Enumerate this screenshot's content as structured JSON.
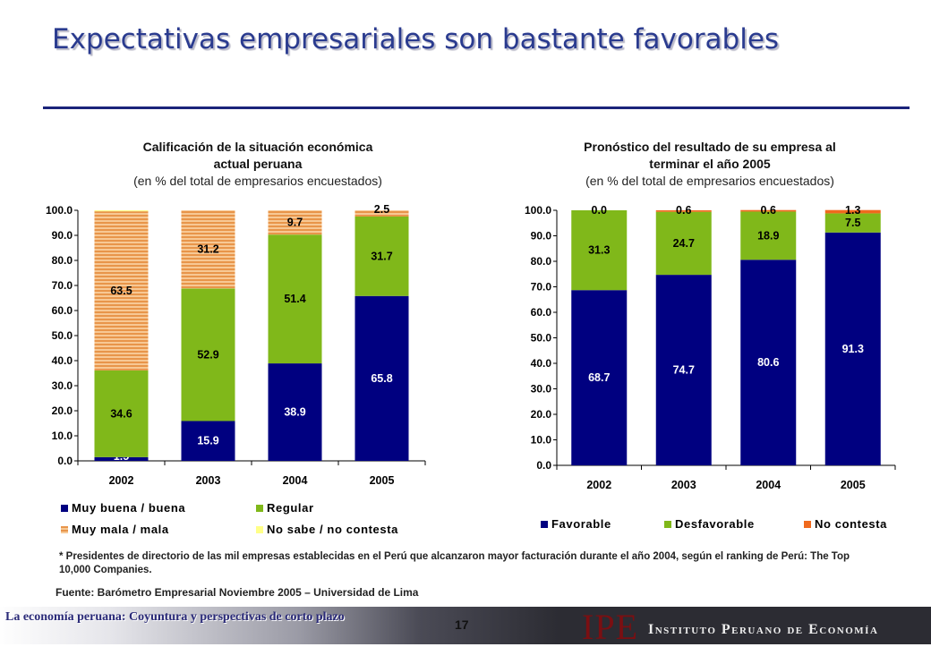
{
  "title": "Expectativas empresariales son bastante favorables",
  "chart_data": [
    {
      "type": "bar",
      "stacked": true,
      "title_line1": "Calificación de la situación económica",
      "title_line2": "actual peruana",
      "subtitle": "(en % del total de empresarios encuestados)",
      "categories": [
        "2002",
        "2003",
        "2004",
        "2005"
      ],
      "ylim": [
        0,
        100
      ],
      "yticks": [
        "0.0",
        "10.0",
        "20.0",
        "30.0",
        "40.0",
        "50.0",
        "60.0",
        "70.0",
        "80.0",
        "90.0",
        "100.0"
      ],
      "series": [
        {
          "name": "Muy buena / buena",
          "color": "#000080",
          "values": [
            1.5,
            15.9,
            38.9,
            65.8
          ],
          "labels": [
            "1.5",
            "15.9",
            "38.9",
            "65.8"
          ],
          "label_color": "#ffffff"
        },
        {
          "name": "Regular",
          "color": "#80b81a",
          "values": [
            34.6,
            52.9,
            51.4,
            31.7
          ],
          "labels": [
            "34.6",
            "52.9",
            "51.4",
            "31.7"
          ],
          "label_color": "#000000"
        },
        {
          "name": "Muy mala / mala",
          "color": "#f0a65a",
          "pattern": "hatch",
          "values": [
            63.5,
            31.2,
            9.7,
            2.5
          ],
          "labels": [
            "63.5",
            "31.2",
            "9.7",
            "2.5"
          ],
          "label_color": "#000000"
        },
        {
          "name": "No sabe / no contesta",
          "color": "#ffff88",
          "values": [
            0.4,
            0.0,
            0.0,
            0.0
          ],
          "labels": [
            "",
            "",
            "",
            ""
          ],
          "label_color": "#000000"
        }
      ],
      "legend": [
        "Muy buena / buena",
        "Regular",
        "Muy mala / mala",
        "No sabe / no contesta"
      ]
    },
    {
      "type": "bar",
      "stacked": true,
      "title_line1": "Pronóstico del resultado de su empresa al",
      "title_line2": "terminar el año 2005",
      "subtitle": "(en % del total de empresarios encuestados)",
      "categories": [
        "2002",
        "2003",
        "2004",
        "2005"
      ],
      "ylim": [
        0,
        100
      ],
      "yticks": [
        "0.0",
        "10.0",
        "20.0",
        "30.0",
        "40.0",
        "50.0",
        "60.0",
        "70.0",
        "80.0",
        "90.0",
        "100.0"
      ],
      "series": [
        {
          "name": "Favorable",
          "color": "#000080",
          "values": [
            68.7,
            74.7,
            80.6,
            91.3
          ],
          "labels": [
            "68.7",
            "74.7",
            "80.6",
            "91.3"
          ],
          "label_color": "#ffffff"
        },
        {
          "name": "Desfavorable",
          "color": "#80b81a",
          "values": [
            31.3,
            24.7,
            18.9,
            7.5
          ],
          "labels": [
            "31.3",
            "24.7",
            "18.9",
            "7.5"
          ],
          "label_color": "#000000"
        },
        {
          "name": "No contesta",
          "color": "#f06a1e",
          "values": [
            0.0,
            0.6,
            0.6,
            1.3
          ],
          "labels": [
            "0.0",
            "0.6",
            "0.6",
            "1.3"
          ],
          "label_color": "#000000"
        }
      ],
      "legend": [
        "Favorable",
        "Desfavorable",
        "No contesta"
      ]
    }
  ],
  "footnote": "* Presidentes de directorio de las mil empresas establecidas en el Perú que alcanzaron mayor facturación durante el año 2004, según el ranking de Perú: The Top 10,000 Companies.",
  "source": "Fuente: Barómetro Empresarial Noviembre 2005 – Universidad de Lima",
  "footer": {
    "left_text": "La economía peruana: Coyuntura y perspectivas de corto plazo",
    "page_number": "17",
    "logo": "IPE",
    "institute_name": "Instituto Peruano de Economía"
  }
}
